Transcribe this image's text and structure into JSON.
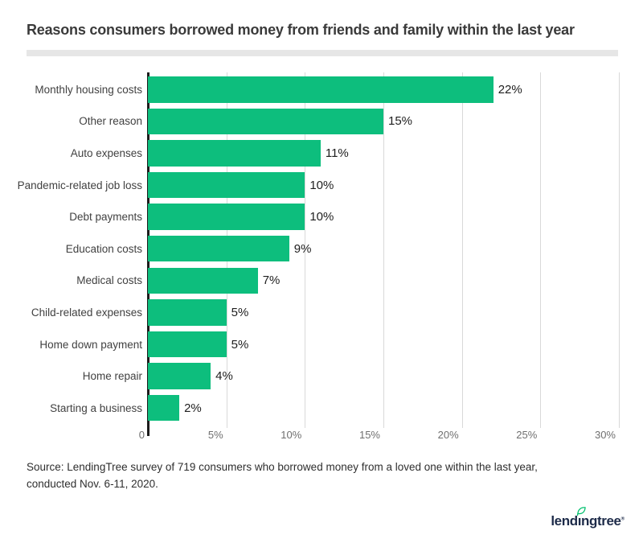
{
  "title": "Reasons consumers borrowed money from friends and family within the last year",
  "chart_data": {
    "type": "bar",
    "orientation": "horizontal",
    "title": "Reasons consumers borrowed money from friends and family within the last year",
    "categories": [
      "Monthly housing costs",
      "Other reason",
      "Auto expenses",
      "Pandemic-related job loss",
      "Debt payments",
      "Education costs",
      "Medical costs",
      "Child-related expenses",
      "Home down payment",
      "Home repair",
      "Starting a business"
    ],
    "values": [
      22,
      15,
      11,
      10,
      10,
      9,
      7,
      5,
      5,
      4,
      2
    ],
    "value_labels": [
      "22%",
      "15%",
      "11%",
      "10%",
      "10%",
      "9%",
      "7%",
      "5%",
      "5%",
      "4%",
      "2%"
    ],
    "xlabel": "",
    "ylabel": "",
    "xlim": [
      0,
      30
    ],
    "x_ticks": [
      "0",
      "5%",
      "10%",
      "15%",
      "20%",
      "25%",
      "30%"
    ],
    "grid": true,
    "legend": false,
    "bar_color": "#0dbe7d",
    "gridline_color": "#d9d9d9",
    "axis_line_color": "#1c1c1c"
  },
  "source": {
    "text": "Source: LendingTree survey of 719 consumers who borrowed money from a loved one within the last year, conducted Nov. 6-11, 2020."
  },
  "logo": {
    "part1": "lend",
    "dotless_i": "ı",
    "part2": "ngtree",
    "mark": "®",
    "text_color": "#1d2b49",
    "leaf_color": "#00c06e"
  }
}
